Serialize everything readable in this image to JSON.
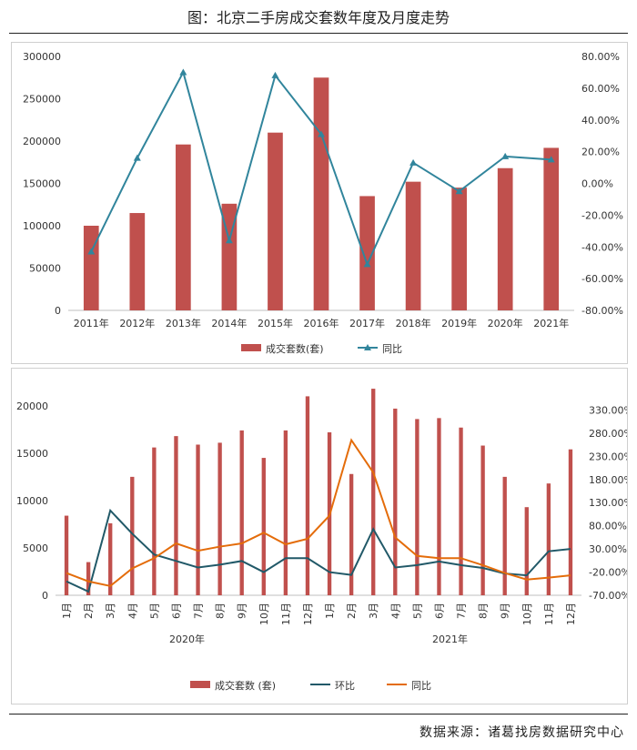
{
  "title": "图：北京二手房成交套数年度及月度走势",
  "source": "数据来源：诸葛找房数据研究中心",
  "colors": {
    "bar": "#c0504d",
    "line_blue": "#31859c",
    "line_dark": "#215968",
    "line_orange": "#e46c0a"
  },
  "chart_data": [
    {
      "type": "bar+line",
      "title": "",
      "categories": [
        "2011年",
        "2012年",
        "2013年",
        "2014年",
        "2015年",
        "2016年",
        "2017年",
        "2018年",
        "2019年",
        "2020年",
        "2021年"
      ],
      "series": [
        {
          "name": "成交套数(套)",
          "axis": "left",
          "type": "bar",
          "values": [
            100000,
            115000,
            196000,
            126000,
            210000,
            275000,
            135000,
            152000,
            145000,
            168000,
            192000
          ]
        },
        {
          "name": "同比",
          "axis": "right",
          "type": "line",
          "marker": "triangle",
          "values": [
            -43,
            16,
            70,
            -36,
            68,
            31,
            -51,
            13,
            -5,
            17,
            15
          ]
        }
      ],
      "y_left": {
        "min": 0,
        "max": 300000,
        "ticks": [
          "0",
          "50000",
          "100000",
          "150000",
          "200000",
          "250000",
          "300000"
        ]
      },
      "y_right": {
        "min": -80,
        "max": 80,
        "ticks": [
          "-80.00%",
          "-60.00%",
          "-40.00%",
          "-20.00%",
          "0.00%",
          "20.00%",
          "40.00%",
          "60.00%",
          "80.00%"
        ]
      },
      "legend": [
        "成交套数(套)",
        "同比"
      ],
      "legend_position": "bottom"
    },
    {
      "type": "bar+line",
      "title": "",
      "categories": [
        "1月",
        "2月",
        "3月",
        "4月",
        "5月",
        "6月",
        "7月",
        "8月",
        "9月",
        "10月",
        "11月",
        "12月",
        "1月",
        "2月",
        "3月",
        "4月",
        "5月",
        "6月",
        "7月",
        "8月",
        "9月",
        "10月",
        "11月",
        "12月"
      ],
      "groups": [
        {
          "label": "2020年",
          "count": 12
        },
        {
          "label": "2021年",
          "count": 12
        }
      ],
      "series": [
        {
          "name": "成交套数 (套)",
          "axis": "left",
          "type": "bar",
          "values": [
            8400,
            3500,
            7600,
            12500,
            15600,
            16800,
            15900,
            16100,
            17400,
            14500,
            17400,
            21000,
            17200,
            12800,
            21800,
            19700,
            18600,
            18700,
            17700,
            15800,
            12500,
            9300,
            11800,
            15400
          ]
        },
        {
          "name": "环比",
          "axis": "right",
          "type": "line",
          "values": [
            -40,
            -62,
            113,
            63,
            18,
            4,
            -10,
            -4,
            4,
            -20,
            10,
            10,
            -20,
            -26,
            73,
            -10,
            -5,
            3,
            -5,
            -11,
            -23,
            -27,
            25,
            30
          ]
        },
        {
          "name": "同比",
          "axis": "right",
          "type": "line",
          "values": [
            -22,
            -40,
            -50,
            -12,
            10,
            42,
            26,
            35,
            42,
            65,
            40,
            52,
            102,
            265,
            195,
            55,
            15,
            10,
            10,
            -5,
            -22,
            -36,
            -32,
            -27
          ]
        }
      ],
      "y_left": {
        "min": 0,
        "max": 22000,
        "ticks": [
          "0",
          "5000",
          "10000",
          "15000",
          "20000"
        ]
      },
      "y_right": {
        "min": -70,
        "max": 380,
        "ticks": [
          "-70.00%",
          "-20.00%",
          "30.00%",
          "80.00%",
          "130.00%",
          "180.00%",
          "230.00%",
          "280.00%",
          "330.00%"
        ]
      },
      "legend": [
        "成交套数 (套)",
        "环比",
        "同比"
      ],
      "legend_position": "bottom"
    }
  ]
}
